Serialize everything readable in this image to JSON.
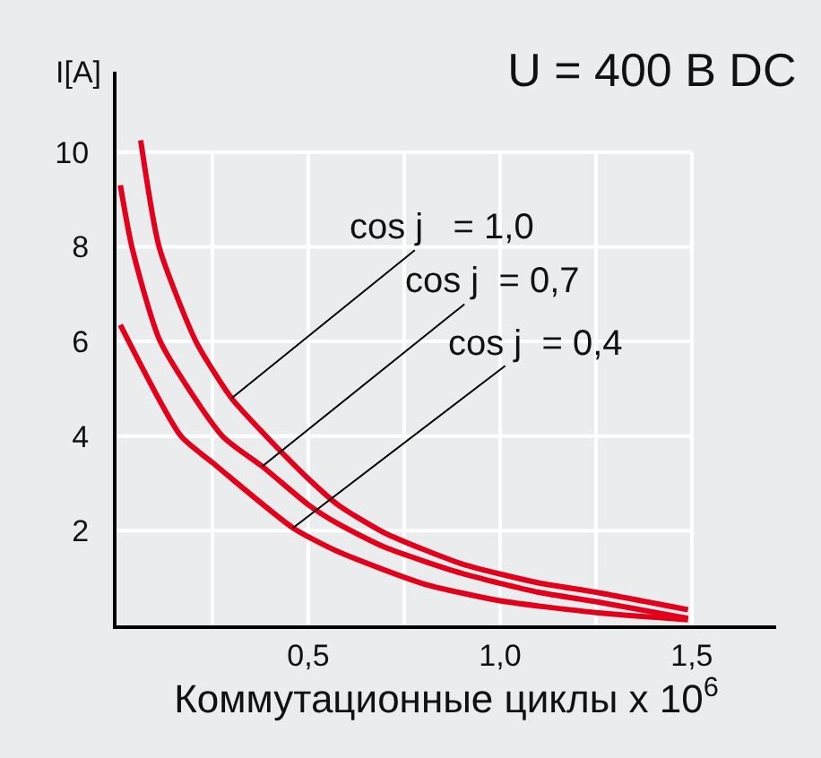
{
  "chart_data": {
    "type": "line",
    "title": "U = 400 B DC",
    "xlabel": "Коммутационные циклы x 10$^{6}$",
    "ylabel": "I[A]",
    "xlim": [
      0,
      1.72
    ],
    "ylim": [
      0,
      11.7
    ],
    "xticks": [
      {
        "value": 0.25,
        "label": null
      },
      {
        "value": 0.5,
        "label": "0,5"
      },
      {
        "value": 0.75,
        "label": null
      },
      {
        "value": 1.0,
        "label": "1,0"
      },
      {
        "value": 1.25,
        "label": null
      },
      {
        "value": 1.5,
        "label": "1,5"
      }
    ],
    "yticks": [
      2,
      4,
      6,
      8,
      10
    ],
    "grid": true,
    "marker": "none",
    "line_style": "solid",
    "series": [
      {
        "color": "#e3001b",
        "x": [
          0.063,
          0.111,
          0.207,
          0.3,
          0.39,
          0.5,
          0.577,
          0.7,
          0.9,
          1.1,
          1.25,
          1.49
        ],
        "values": [
          10.25,
          8.0,
          6.0,
          4.8,
          4.0,
          3.1,
          2.55,
          1.95,
          1.3,
          0.9,
          0.7,
          0.33
        ]
      },
      {
        "color": "#e3001b",
        "x": [
          0.01,
          0.04,
          0.114,
          0.276,
          0.38,
          0.5,
          0.577,
          0.7,
          0.9,
          1.1,
          1.25,
          1.49
        ],
        "values": [
          9.3,
          8.0,
          6.0,
          4.0,
          3.36,
          2.55,
          2.15,
          1.65,
          1.1,
          0.7,
          0.5,
          0.15
        ]
      },
      {
        "color": "#e3001b",
        "x": [
          0.01,
          0.168,
          0.25,
          0.46,
          0.577,
          0.8,
          1.0,
          1.25,
          1.49
        ],
        "values": [
          6.35,
          4.0,
          3.44,
          2.06,
          1.56,
          0.88,
          0.52,
          0.27,
          0.12
        ]
      }
    ],
    "annotations": [
      {
        "text": "cos j   = 1,0",
        "x": 0.3,
        "y": 4.8
      },
      {
        "text": "cos j  = 0,7",
        "x": 0.38,
        "y": 3.36
      },
      {
        "text": "cos j  = 0,4",
        "x": 0.46,
        "y": 2.06
      }
    ]
  }
}
